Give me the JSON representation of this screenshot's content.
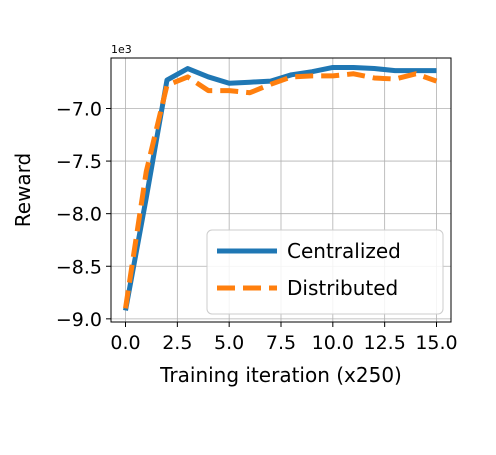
{
  "chart_data": {
    "type": "line",
    "xlabel": "Training iteration (x250)",
    "ylabel": "Reward",
    "y_offset_label": "1e3",
    "xlim": [
      -0.7,
      15.7
    ],
    "ylim": [
      -9.03,
      -6.52
    ],
    "xticks": [
      0,
      2.5,
      5,
      7.5,
      10,
      12.5,
      15
    ],
    "xtick_labels": [
      "0.0",
      "2.5",
      "5.0",
      "7.5",
      "10.0",
      "12.5",
      "15.0"
    ],
    "yticks": [
      -9.0,
      -8.5,
      -8.0,
      -7.5,
      -7.0
    ],
    "ytick_labels": [
      "−9.0",
      "−8.5",
      "−8.0",
      "−7.5",
      "−7.0"
    ],
    "grid": true,
    "legend_position": "lower-right",
    "x": [
      0,
      1,
      2,
      3,
      4,
      5,
      6,
      7,
      8,
      9,
      10,
      11,
      12,
      13,
      14,
      15
    ],
    "series": [
      {
        "name": "Centralized",
        "color": "#1f77b4",
        "style": "solid",
        "values": [
          -8.92,
          -7.85,
          -6.73,
          -6.62,
          -6.7,
          -6.76,
          -6.75,
          -6.74,
          -6.68,
          -6.65,
          -6.61,
          -6.61,
          -6.62,
          -6.64,
          -6.64,
          -6.64
        ]
      },
      {
        "name": "Distributed",
        "color": "#ff7f0e",
        "style": "dashed",
        "values": [
          -8.9,
          -7.6,
          -6.78,
          -6.7,
          -6.83,
          -6.83,
          -6.85,
          -6.77,
          -6.7,
          -6.69,
          -6.69,
          -6.67,
          -6.71,
          -6.72,
          -6.67,
          -6.74
        ]
      }
    ]
  }
}
